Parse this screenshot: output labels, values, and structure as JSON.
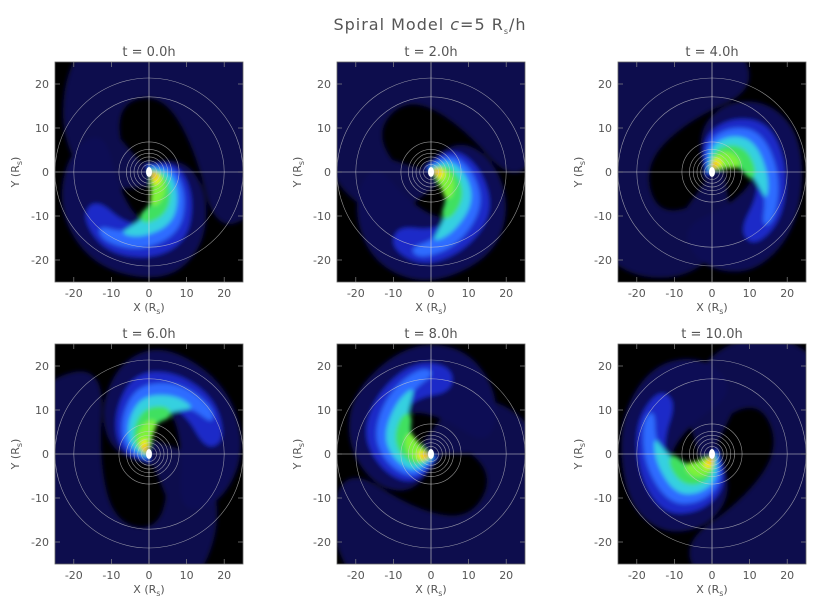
{
  "figure": {
    "title_prefix": "Spiral Model ",
    "title_symbol": "c",
    "title_value": "=5 R",
    "title_sub": "s",
    "title_suffix": "/h"
  },
  "chart_data": {
    "type": "heatmap",
    "title": "Spiral Model c=5 Rs/h",
    "colormap": [
      "#000000",
      "#0b0b55",
      "#1a2cc8",
      "#2f6cff",
      "#36d0e0",
      "#3fe060",
      "#7df23a",
      "#f0f020",
      "#ff9a10",
      "#ff1a10"
    ],
    "panels": [
      {
        "title": "t =  0.0h",
        "t": 0.0,
        "rotation_deg": 0
      },
      {
        "title": "t =  2.0h",
        "t": 2.0,
        "rotation_deg": 30
      },
      {
        "title": "t =  4.0h",
        "t": 4.0,
        "rotation_deg": 95
      },
      {
        "title": "t =  6.0h",
        "t": 6.0,
        "rotation_deg": 160
      },
      {
        "title": "t =  8.0h",
        "t": 8.0,
        "rotation_deg": 225
      },
      {
        "title": "t = 10.0h",
        "t": 10.0,
        "rotation_deg": 285
      }
    ],
    "xlabel": "X (R",
    "ylabel": "Y (R",
    "label_sub": "s",
    "label_close": ")",
    "xlim": [
      -25,
      25
    ],
    "ylim": [
      -25,
      25
    ],
    "xticks": [
      -20,
      -10,
      0,
      10,
      20
    ],
    "yticks": [
      -20,
      -10,
      0,
      10,
      20
    ],
    "reference_circles_Rs": [
      2,
      3,
      4,
      5,
      6,
      8,
      20,
      25
    ],
    "grid": "crosshair at origin"
  }
}
